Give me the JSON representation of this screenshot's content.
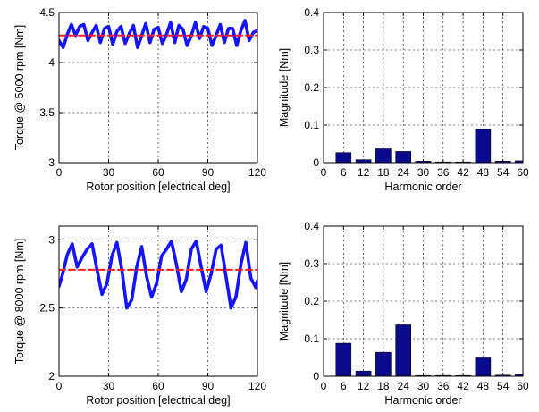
{
  "colors": {
    "series": "#1414ff",
    "mean": "#ff1a1a",
    "bars": "#0a0a8c"
  },
  "chart_data": [
    {
      "type": "line",
      "xlabel": "Rotor position [electrical deg]",
      "ylabel": "Torque @ 5000 rpm [Nm]",
      "xlim": [
        0,
        120
      ],
      "ylim": [
        3,
        4.5
      ],
      "xticks": [
        "0",
        "30",
        "60",
        "90",
        "120"
      ],
      "yticks": [
        "3",
        "3.5",
        "4",
        "4.5"
      ],
      "grid": true,
      "series": [
        {
          "style": "solid",
          "color": "#1414ff",
          "x": [
            0,
            2.5,
            5,
            7.5,
            10,
            12.5,
            15,
            17.5,
            20,
            22.5,
            25,
            27.5,
            30,
            32.5,
            35,
            37.5,
            40,
            42.5,
            45,
            47.5,
            50,
            52.5,
            55,
            57.5,
            60,
            62.5,
            65,
            67.5,
            70,
            72.5,
            75,
            77.5,
            80,
            82.5,
            85,
            87.5,
            90,
            92.5,
            95,
            97.5,
            100,
            102.5,
            105,
            107.5,
            110,
            112.5,
            115,
            117.5,
            120
          ],
          "y": [
            4.22,
            4.15,
            4.28,
            4.38,
            4.27,
            4.36,
            4.38,
            4.22,
            4.3,
            4.37,
            4.2,
            4.34,
            4.36,
            4.18,
            4.31,
            4.36,
            4.19,
            4.29,
            4.37,
            4.15,
            4.27,
            4.39,
            4.2,
            4.33,
            4.35,
            4.19,
            4.28,
            4.4,
            4.2,
            4.37,
            4.33,
            4.17,
            4.27,
            4.4,
            4.24,
            4.36,
            4.34,
            4.17,
            4.27,
            4.38,
            4.2,
            4.34,
            4.34,
            4.17,
            4.32,
            4.42,
            4.22,
            4.3,
            4.32
          ]
        },
        {
          "style": "dashed",
          "color": "#ff1a1a",
          "x": [
            0,
            120
          ],
          "y": [
            4.27,
            4.27
          ]
        }
      ]
    },
    {
      "type": "bar",
      "xlabel": "Harmonic order",
      "ylabel": "Magnitude [Nm]",
      "xlim": [
        0,
        60
      ],
      "ylim": [
        0,
        0.4
      ],
      "xticks": [
        "0",
        "6",
        "12",
        "18",
        "24",
        "30",
        "36",
        "42",
        "48",
        "54",
        "60"
      ],
      "yticks": [
        "0",
        "0.1",
        "0.2",
        "0.3",
        "0.4"
      ],
      "grid": true,
      "x": [
        6,
        12,
        18,
        24,
        30,
        36,
        42,
        48,
        54,
        60
      ],
      "values": [
        0.027,
        0.008,
        0.037,
        0.03,
        0.004,
        0.002,
        0.002,
        0.09,
        0.004,
        0.005
      ]
    },
    {
      "type": "line",
      "xlabel": "Rotor position [electrical deg]",
      "ylabel": "Torque @ 8000 rpm [Nm]",
      "xlim": [
        0,
        120
      ],
      "ylim": [
        2,
        3.1
      ],
      "xticks": [
        "0",
        "30",
        "60",
        "90",
        "120"
      ],
      "yticks": [
        "2",
        "2.5",
        "3"
      ],
      "grid": true,
      "series": [
        {
          "style": "solid",
          "color": "#1414ff",
          "x": [
            0,
            2,
            5,
            8,
            11,
            14,
            17,
            20,
            23,
            26,
            29,
            32,
            35,
            38,
            41,
            44,
            47,
            50,
            53,
            56,
            59,
            62,
            65,
            68,
            71,
            74,
            77,
            80,
            83,
            86,
            89,
            92,
            95,
            98,
            101,
            104,
            107,
            110,
            113,
            116,
            119,
            120
          ],
          "y": [
            2.66,
            2.74,
            2.89,
            2.97,
            2.8,
            2.87,
            2.93,
            2.97,
            2.78,
            2.6,
            2.68,
            2.88,
            2.98,
            2.78,
            2.5,
            2.56,
            2.8,
            2.95,
            2.73,
            2.58,
            2.68,
            2.88,
            2.93,
            2.99,
            2.82,
            2.62,
            2.71,
            2.93,
            2.99,
            2.8,
            2.62,
            2.75,
            2.93,
            2.96,
            2.73,
            2.5,
            2.58,
            2.82,
            2.98,
            2.72,
            2.65,
            2.7
          ]
        },
        {
          "style": "dashed",
          "color": "#ff1a1a",
          "x": [
            0,
            120
          ],
          "y": [
            2.78,
            2.78
          ]
        }
      ]
    },
    {
      "type": "bar",
      "xlabel": "Harmonic order",
      "ylabel": "Magnitude [Nm]",
      "xlim": [
        0,
        60
      ],
      "ylim": [
        0,
        0.4
      ],
      "xticks": [
        "0",
        "6",
        "12",
        "18",
        "24",
        "30",
        "36",
        "42",
        "48",
        "54",
        "60"
      ],
      "yticks": [
        "0",
        "0.1",
        "0.2",
        "0.3",
        "0.4"
      ],
      "grid": true,
      "x": [
        6,
        12,
        18,
        24,
        30,
        36,
        42,
        48,
        54,
        60
      ],
      "values": [
        0.088,
        0.014,
        0.064,
        0.137,
        0.002,
        0.002,
        0.002,
        0.049,
        0.003,
        0.005
      ]
    }
  ]
}
